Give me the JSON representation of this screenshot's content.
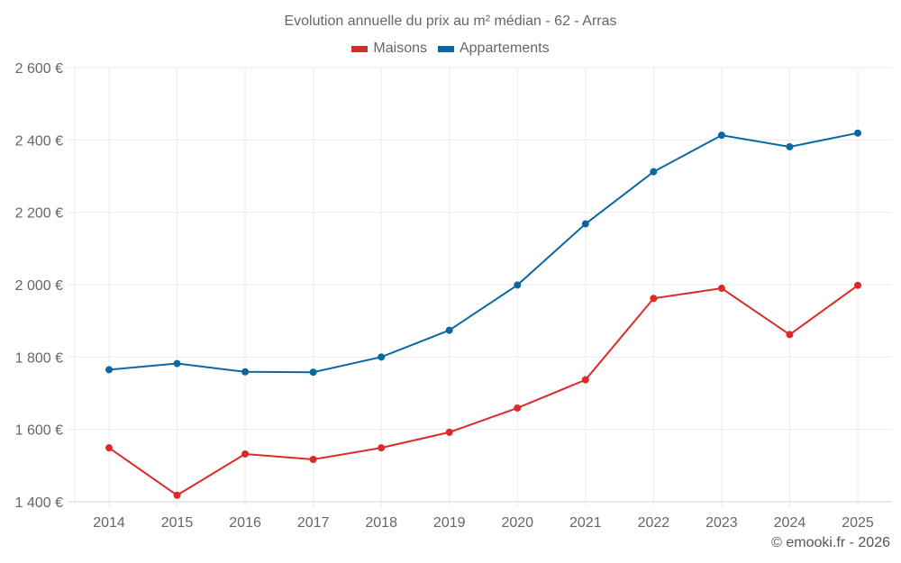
{
  "chart_data": {
    "type": "line",
    "title": "Evolution annuelle du prix au m² médian - 62 - Arras",
    "xlabel": "",
    "ylabel": "",
    "categories": [
      "2014",
      "2015",
      "2016",
      "2017",
      "2018",
      "2019",
      "2020",
      "2021",
      "2022",
      "2023",
      "2024",
      "2025"
    ],
    "series": [
      {
        "name": "Maisons",
        "color": "#dc2a2a",
        "values": [
          1549,
          1418,
          1532,
          1517,
          1549,
          1592,
          1659,
          1737,
          1962,
          1990,
          1862,
          1998
        ]
      },
      {
        "name": "Appartements",
        "color": "#0b67a3",
        "values": [
          1765,
          1782,
          1759,
          1758,
          1800,
          1874,
          1999,
          2168,
          2312,
          2413,
          2381,
          2419
        ]
      }
    ],
    "ylim": [
      1400,
      2600
    ],
    "yticks": [
      1400,
      1600,
      1800,
      2000,
      2200,
      2400,
      2600
    ],
    "ytick_labels": [
      "1 400 €",
      "1 600 €",
      "1 800 €",
      "2 000 €",
      "2 200 €",
      "2 400 €",
      "2 600 €"
    ],
    "grid": true,
    "legend_position": "top-center"
  },
  "footer": "© emooki.fr - 2026"
}
